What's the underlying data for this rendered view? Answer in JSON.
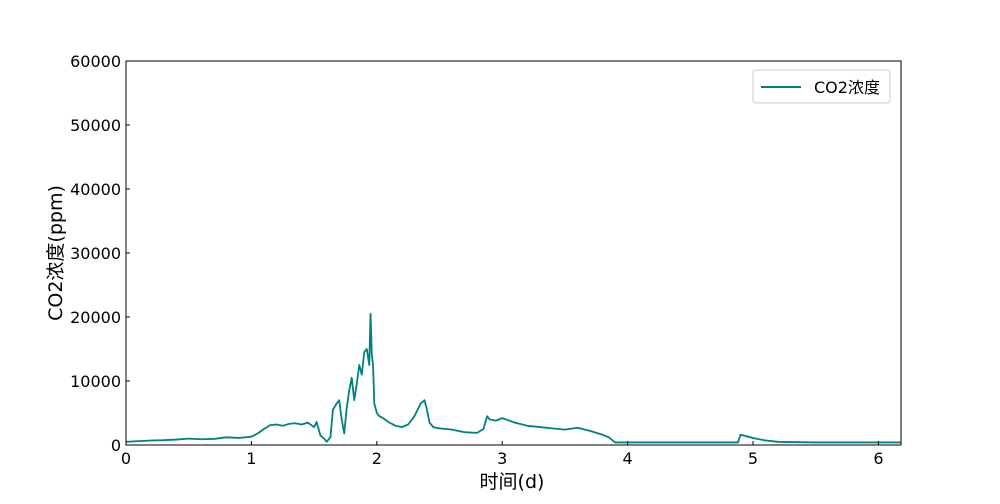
{
  "chart_data": {
    "type": "line",
    "xlabel": "时间(d)",
    "ylabel": "CO2浓度(ppm)",
    "xlim": [
      0,
      6.18
    ],
    "ylim": [
      0,
      60000
    ],
    "x_ticks": [
      0,
      1,
      2,
      3,
      4,
      5,
      6
    ],
    "y_ticks": [
      0,
      10000,
      20000,
      30000,
      40000,
      50000,
      60000
    ],
    "grid": false,
    "legend_position": "upper-right",
    "series": [
      {
        "name": "CO2浓度",
        "color": "#008080",
        "x": [
          0,
          0.1,
          0.2,
          0.3,
          0.4,
          0.5,
          0.6,
          0.7,
          0.8,
          0.9,
          1.0,
          1.05,
          1.1,
          1.15,
          1.2,
          1.25,
          1.3,
          1.35,
          1.4,
          1.45,
          1.5,
          1.52,
          1.55,
          1.58,
          1.6,
          1.63,
          1.65,
          1.68,
          1.7,
          1.72,
          1.74,
          1.76,
          1.78,
          1.8,
          1.82,
          1.84,
          1.86,
          1.88,
          1.9,
          1.92,
          1.94,
          1.95,
          1.96,
          1.97,
          1.98,
          2.0,
          2.02,
          2.05,
          2.1,
          2.15,
          2.2,
          2.25,
          2.3,
          2.35,
          2.38,
          2.4,
          2.42,
          2.45,
          2.5,
          2.6,
          2.7,
          2.8,
          2.85,
          2.88,
          2.9,
          2.95,
          3.0,
          3.1,
          3.2,
          3.3,
          3.4,
          3.5,
          3.6,
          3.7,
          3.8,
          3.85,
          3.9,
          4.0,
          4.5,
          4.88,
          4.9,
          4.92,
          5.0,
          5.1,
          5.2,
          5.5,
          6.0,
          6.18
        ],
        "values": [
          500,
          600,
          700,
          750,
          850,
          1000,
          900,
          950,
          1200,
          1100,
          1300,
          1800,
          2500,
          3100,
          3200,
          3000,
          3300,
          3400,
          3200,
          3500,
          2800,
          3600,
          1500,
          1000,
          500,
          1200,
          5500,
          6500,
          7000,
          4000,
          1800,
          5800,
          8500,
          10500,
          7000,
          9500,
          12500,
          11000,
          14500,
          15000,
          12500,
          20500,
          14000,
          12500,
          6500,
          5000,
          4500,
          4200,
          3500,
          3000,
          2800,
          3200,
          4500,
          6500,
          7000,
          5500,
          3500,
          2800,
          2600,
          2400,
          2000,
          1900,
          2500,
          4500,
          4000,
          3800,
          4200,
          3500,
          3000,
          2800,
          2600,
          2400,
          2700,
          2200,
          1600,
          1200,
          400,
          400,
          400,
          400,
          1600,
          1500,
          1100,
          700,
          500,
          400,
          400,
          400
        ]
      }
    ]
  }
}
